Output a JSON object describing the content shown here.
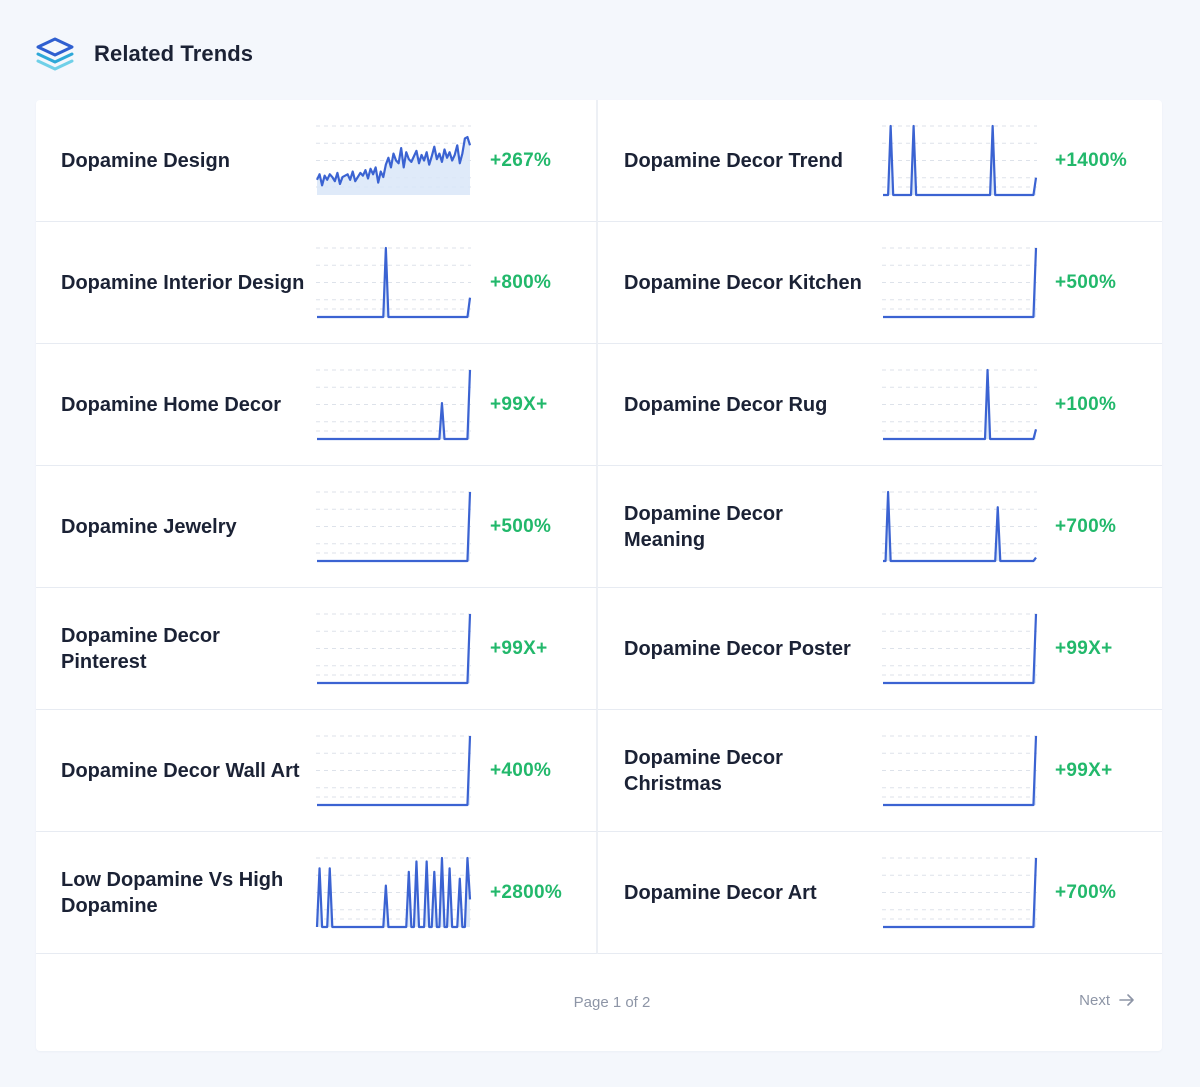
{
  "header": {
    "title": "Related Trends",
    "icon": "layers-icon"
  },
  "colors": {
    "accent": "#3b63d2",
    "fill": "#d9e6f8",
    "positive": "#22b86b",
    "grid": "#dde2ea"
  },
  "chart_data": [
    {
      "type": "area",
      "name": "Dopamine Design",
      "change": "+267%",
      "values": [
        22,
        30,
        14,
        28,
        22,
        30,
        26,
        20,
        32,
        16,
        26,
        28,
        30,
        22,
        34,
        20,
        26,
        32,
        28,
        36,
        24,
        38,
        30,
        40,
        18,
        34,
        26,
        44,
        54,
        40,
        60,
        50,
        46,
        68,
        40,
        62,
        52,
        48,
        56,
        64,
        46,
        58,
        50,
        62,
        44,
        56,
        70,
        52,
        60,
        48,
        66,
        54,
        62,
        50,
        58,
        72,
        46,
        60,
        82,
        84,
        72
      ]
    },
    {
      "type": "area",
      "name": "Dopamine Decor Trend",
      "change": "+1400%",
      "values": [
        0,
        0,
        0,
        100,
        0,
        0,
        0,
        0,
        0,
        0,
        0,
        0,
        100,
        0,
        0,
        0,
        0,
        0,
        0,
        0,
        0,
        0,
        0,
        0,
        0,
        0,
        0,
        0,
        0,
        0,
        0,
        0,
        0,
        0,
        0,
        0,
        0,
        0,
        0,
        0,
        0,
        0,
        0,
        100,
        0,
        0,
        0,
        0,
        0,
        0,
        0,
        0,
        0,
        0,
        0,
        0,
        0,
        0,
        0,
        0,
        25
      ]
    },
    {
      "type": "area",
      "name": "Dopamine Interior Design",
      "change": "+800%",
      "values": [
        0,
        0,
        0,
        0,
        0,
        0,
        0,
        0,
        0,
        0,
        0,
        0,
        0,
        0,
        0,
        0,
        0,
        0,
        0,
        0,
        0,
        0,
        0,
        0,
        0,
        0,
        0,
        100,
        0,
        0,
        0,
        0,
        0,
        0,
        0,
        0,
        0,
        0,
        0,
        0,
        0,
        0,
        0,
        0,
        0,
        0,
        0,
        0,
        0,
        0,
        0,
        0,
        0,
        0,
        0,
        0,
        0,
        0,
        0,
        0,
        28
      ]
    },
    {
      "type": "area",
      "name": "Dopamine Decor Kitchen",
      "change": "+500%",
      "values": [
        0,
        0,
        0,
        0,
        0,
        0,
        0,
        0,
        0,
        0,
        0,
        0,
        0,
        0,
        0,
        0,
        0,
        0,
        0,
        0,
        0,
        0,
        0,
        0,
        0,
        0,
        0,
        0,
        0,
        0,
        0,
        0,
        0,
        0,
        0,
        0,
        0,
        0,
        0,
        0,
        0,
        0,
        0,
        0,
        0,
        0,
        0,
        0,
        0,
        0,
        0,
        0,
        0,
        0,
        0,
        0,
        0,
        0,
        0,
        0,
        100
      ]
    },
    {
      "type": "area",
      "name": "Dopamine Home Decor",
      "change": "+99X+",
      "values": [
        0,
        0,
        0,
        0,
        0,
        0,
        0,
        0,
        0,
        0,
        0,
        0,
        0,
        0,
        0,
        0,
        0,
        0,
        0,
        0,
        0,
        0,
        0,
        0,
        0,
        0,
        0,
        0,
        0,
        0,
        0,
        0,
        0,
        0,
        0,
        0,
        0,
        0,
        0,
        0,
        0,
        0,
        0,
        0,
        0,
        0,
        0,
        0,
        0,
        52,
        0,
        0,
        0,
        0,
        0,
        0,
        0,
        0,
        0,
        0,
        100
      ]
    },
    {
      "type": "area",
      "name": "Dopamine Decor Rug",
      "change": "+100%",
      "values": [
        0,
        0,
        0,
        0,
        0,
        0,
        0,
        0,
        0,
        0,
        0,
        0,
        0,
        0,
        0,
        0,
        0,
        0,
        0,
        0,
        0,
        0,
        0,
        0,
        0,
        0,
        0,
        0,
        0,
        0,
        0,
        0,
        0,
        0,
        0,
        0,
        0,
        0,
        0,
        0,
        0,
        100,
        0,
        0,
        0,
        0,
        0,
        0,
        0,
        0,
        0,
        0,
        0,
        0,
        0,
        0,
        0,
        0,
        0,
        0,
        14
      ]
    },
    {
      "type": "area",
      "name": "Dopamine Jewelry",
      "change": "+500%",
      "values": [
        0,
        0,
        0,
        0,
        0,
        0,
        0,
        0,
        0,
        0,
        0,
        0,
        0,
        0,
        0,
        0,
        0,
        0,
        0,
        0,
        0,
        0,
        0,
        0,
        0,
        0,
        0,
        0,
        0,
        0,
        0,
        0,
        0,
        0,
        0,
        0,
        0,
        0,
        0,
        0,
        0,
        0,
        0,
        0,
        0,
        0,
        0,
        0,
        0,
        0,
        0,
        0,
        0,
        0,
        0,
        0,
        0,
        0,
        0,
        0,
        100
      ]
    },
    {
      "type": "area",
      "name": "Dopamine Decor Meaning",
      "change": "+700%",
      "values": [
        0,
        0,
        100,
        0,
        0,
        0,
        0,
        0,
        0,
        0,
        0,
        0,
        0,
        0,
        0,
        0,
        0,
        0,
        0,
        0,
        0,
        0,
        0,
        0,
        0,
        0,
        0,
        0,
        0,
        0,
        0,
        0,
        0,
        0,
        0,
        0,
        0,
        0,
        0,
        0,
        0,
        0,
        0,
        0,
        0,
        78,
        0,
        0,
        0,
        0,
        0,
        0,
        0,
        0,
        0,
        0,
        0,
        0,
        0,
        0,
        5
      ]
    },
    {
      "type": "area",
      "name": "Dopamine Decor Pinterest",
      "change": "+99X+",
      "values": [
        0,
        0,
        0,
        0,
        0,
        0,
        0,
        0,
        0,
        0,
        0,
        0,
        0,
        0,
        0,
        0,
        0,
        0,
        0,
        0,
        0,
        0,
        0,
        0,
        0,
        0,
        0,
        0,
        0,
        0,
        0,
        0,
        0,
        0,
        0,
        0,
        0,
        0,
        0,
        0,
        0,
        0,
        0,
        0,
        0,
        0,
        0,
        0,
        0,
        0,
        0,
        0,
        0,
        0,
        0,
        0,
        0,
        0,
        0,
        0,
        100
      ]
    },
    {
      "type": "area",
      "name": "Dopamine Decor Poster",
      "change": "+99X+",
      "values": [
        0,
        0,
        0,
        0,
        0,
        0,
        0,
        0,
        0,
        0,
        0,
        0,
        0,
        0,
        0,
        0,
        0,
        0,
        0,
        0,
        0,
        0,
        0,
        0,
        0,
        0,
        0,
        0,
        0,
        0,
        0,
        0,
        0,
        0,
        0,
        0,
        0,
        0,
        0,
        0,
        0,
        0,
        0,
        0,
        0,
        0,
        0,
        0,
        0,
        0,
        0,
        0,
        0,
        0,
        0,
        0,
        0,
        0,
        0,
        0,
        100
      ]
    },
    {
      "type": "area",
      "name": "Dopamine Decor Wall Art",
      "change": "+400%",
      "values": [
        0,
        0,
        0,
        0,
        0,
        0,
        0,
        0,
        0,
        0,
        0,
        0,
        0,
        0,
        0,
        0,
        0,
        0,
        0,
        0,
        0,
        0,
        0,
        0,
        0,
        0,
        0,
        0,
        0,
        0,
        0,
        0,
        0,
        0,
        0,
        0,
        0,
        0,
        0,
        0,
        0,
        0,
        0,
        0,
        0,
        0,
        0,
        0,
        0,
        0,
        0,
        0,
        0,
        0,
        0,
        0,
        0,
        0,
        0,
        0,
        100
      ]
    },
    {
      "type": "area",
      "name": "Dopamine Decor Christmas",
      "change": "+99X+",
      "values": [
        0,
        0,
        0,
        0,
        0,
        0,
        0,
        0,
        0,
        0,
        0,
        0,
        0,
        0,
        0,
        0,
        0,
        0,
        0,
        0,
        0,
        0,
        0,
        0,
        0,
        0,
        0,
        0,
        0,
        0,
        0,
        0,
        0,
        0,
        0,
        0,
        0,
        0,
        0,
        0,
        0,
        0,
        0,
        0,
        0,
        0,
        0,
        0,
        0,
        0,
        0,
        0,
        0,
        0,
        0,
        0,
        0,
        0,
        0,
        0,
        100
      ]
    },
    {
      "type": "area",
      "name": "Low Dopamine Vs High Dopamine",
      "change": "+2800%",
      "values": [
        0,
        85,
        0,
        0,
        0,
        85,
        0,
        0,
        0,
        0,
        0,
        0,
        0,
        0,
        0,
        0,
        0,
        0,
        0,
        0,
        0,
        0,
        0,
        0,
        0,
        0,
        0,
        60,
        0,
        0,
        0,
        0,
        0,
        0,
        0,
        0,
        80,
        0,
        0,
        95,
        0,
        0,
        0,
        95,
        0,
        0,
        80,
        0,
        0,
        100,
        0,
        0,
        85,
        0,
        0,
        0,
        70,
        0,
        0,
        100,
        40
      ]
    },
    {
      "type": "area",
      "name": "Dopamine Decor Art",
      "change": "+700%",
      "values": [
        0,
        0,
        0,
        0,
        0,
        0,
        0,
        0,
        0,
        0,
        0,
        0,
        0,
        0,
        0,
        0,
        0,
        0,
        0,
        0,
        0,
        0,
        0,
        0,
        0,
        0,
        0,
        0,
        0,
        0,
        0,
        0,
        0,
        0,
        0,
        0,
        0,
        0,
        0,
        0,
        0,
        0,
        0,
        0,
        0,
        0,
        0,
        0,
        0,
        0,
        0,
        0,
        0,
        0,
        0,
        0,
        0,
        0,
        0,
        0,
        100
      ]
    }
  ],
  "pagination": {
    "page_info": "Page 1 of 2",
    "next_label": "Next"
  }
}
